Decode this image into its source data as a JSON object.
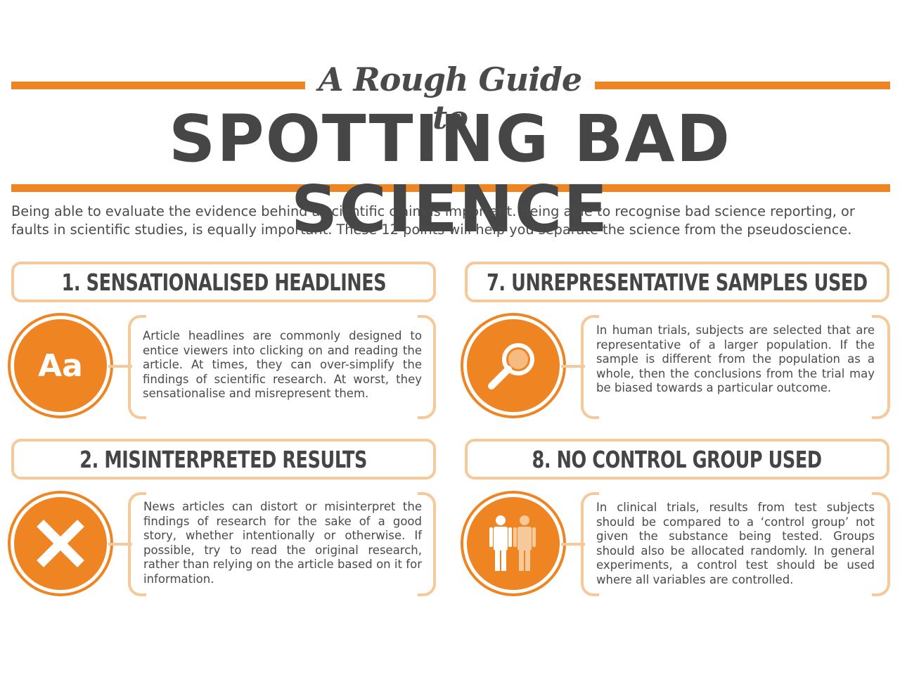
{
  "header": {
    "subtitle": "A Rough Guide to",
    "title": "SPOTTING BAD SCIENCE",
    "intro": "Being able to evaluate the evidence behind a scientific claim is important. Being able to recognise bad science reporting, or faults in scientific studies, is equally important. These 12 points will help you separate the science from the pseudoscience."
  },
  "colors": {
    "accent": "#ee8422",
    "light_accent": "#f6c99a",
    "text": "#4a4a4a"
  },
  "points": [
    {
      "heading": "1. SENSATIONALISED HEADLINES",
      "icon": "Aa",
      "icon_name": "typography-icon",
      "body": "Article headlines are commonly designed to entice viewers into clicking on and reading the article. At times, they can over-simplify the findings of scientific research. At worst, they sensationalise and misrepresent them."
    },
    {
      "heading": "7. UNREPRESENTATIVE SAMPLES USED",
      "icon_name": "magnifying-glass-icon",
      "body": "In human trials, subjects are selected that are representative of a larger population. If the sample is different from the population as a whole, then the conclusions from the trial may be biased towards a particular outcome."
    },
    {
      "heading": "2. MISINTERPRETED RESULTS",
      "icon_name": "cross-icon",
      "body": "News articles can distort or misinterpret the findings of research for the sake of a good story, whether intentionally or otherwise. If possible, try to read the original research, rather than relying on the article based on it for information."
    },
    {
      "heading": "8. NO CONTROL GROUP USED",
      "icon_name": "people-icon",
      "body": "In clinical trials, results from test subjects should be compared to a ‘control group’ not given the substance being tested. Groups should also be allocated randomly. In general experiments, a control test should be used where all variables are controlled."
    }
  ]
}
